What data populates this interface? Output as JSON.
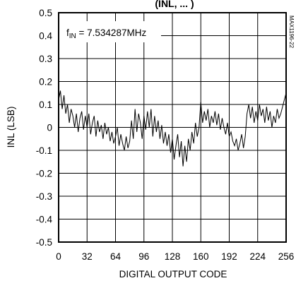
{
  "chart_data": {
    "type": "line",
    "title_fragment": "(INL, ... )",
    "xlabel": "DIGITAL OUTPUT CODE",
    "ylabel": "INL (LSB)",
    "xlim": [
      0,
      256
    ],
    "ylim": [
      -0.5,
      0.5
    ],
    "x_ticks": [
      "0",
      "32",
      "64",
      "96",
      "128",
      "160",
      "192",
      "224",
      "256"
    ],
    "y_ticks": [
      "0.5",
      "0.4",
      "0.3",
      "0.2",
      "0.1",
      "0",
      "-0.1",
      "-0.2",
      "-0.3",
      "-0.4",
      "-0.5"
    ],
    "grid": true,
    "annotation": {
      "prefix": "f",
      "subscript": "IN",
      "value": " = 7.534287MHz"
    },
    "side_code": "MAX1196-22",
    "series": [
      {
        "x": [
          0,
          2,
          4,
          6,
          8,
          10,
          12,
          14,
          16,
          18,
          20,
          22,
          24,
          26,
          28,
          30,
          32,
          34,
          36,
          38,
          40,
          42,
          44,
          46,
          48,
          50,
          52,
          54,
          56,
          58,
          60,
          62,
          64,
          66,
          68,
          70,
          72,
          74,
          76,
          78,
          80,
          82,
          84,
          86,
          88,
          90,
          92,
          94,
          96,
          98,
          100,
          102,
          104,
          106,
          108,
          110,
          112,
          114,
          116,
          118,
          120,
          122,
          124,
          126,
          128,
          130,
          132,
          134,
          136,
          138,
          140,
          142,
          144,
          146,
          148,
          150,
          152,
          154,
          156,
          158,
          160,
          162,
          164,
          166,
          168,
          170,
          172,
          174,
          176,
          178,
          180,
          182,
          184,
          186,
          188,
          190,
          192,
          194,
          196,
          198,
          200,
          202,
          204,
          206,
          208,
          210,
          212,
          214,
          216,
          218,
          220,
          222,
          224,
          226,
          228,
          230,
          232,
          234,
          236,
          238,
          240,
          242,
          244,
          246,
          248,
          250,
          252,
          254,
          256
        ],
        "values": [
          0.12,
          0.16,
          0.08,
          0.14,
          0.06,
          0.1,
          0.02,
          0.08,
          0.05,
          0.0,
          0.06,
          -0.02,
          0.04,
          0.07,
          -0.01,
          0.05,
          0.0,
          0.06,
          -0.03,
          0.02,
          0.05,
          -0.04,
          0.03,
          -0.02,
          0.01,
          -0.05,
          0.02,
          -0.03,
          0.0,
          -0.06,
          -0.02,
          -0.07,
          -0.04,
          0.0,
          -0.08,
          -0.03,
          -0.07,
          -0.1,
          -0.04,
          -0.09,
          -0.06,
          0.03,
          -0.05,
          0.08,
          -0.02,
          0.06,
          0.02,
          -0.05,
          0.05,
          -0.01,
          0.07,
          0.0,
          0.08,
          -0.04,
          0.05,
          -0.02,
          0.03,
          -0.05,
          0.01,
          -0.07,
          -0.02,
          -0.08,
          -0.03,
          -0.11,
          -0.05,
          -0.14,
          -0.08,
          -0.03,
          -0.13,
          -0.06,
          -0.17,
          -0.08,
          -0.15,
          -0.05,
          -0.1,
          -0.02,
          -0.07,
          0.02,
          -0.04,
          0.0,
          0.11,
          0.02,
          0.07,
          0.03,
          0.08,
          0.0,
          0.05,
          0.02,
          0.07,
          0.01,
          0.06,
          -0.01,
          0.04,
          0.0,
          -0.03,
          0.02,
          -0.04,
          -0.02,
          -0.06,
          -0.08,
          -0.05,
          -0.1,
          -0.07,
          -0.03,
          -0.09,
          -0.04,
          0.06,
          0.1,
          0.04,
          0.09,
          0.02,
          0.07,
          0.03,
          0.1,
          0.05,
          0.08,
          0.02,
          0.09,
          0.03,
          0.07,
          0.0,
          0.05,
          0.02,
          0.08,
          0.04,
          0.06,
          0.09,
          0.12,
          0.15
        ]
      }
    ]
  }
}
